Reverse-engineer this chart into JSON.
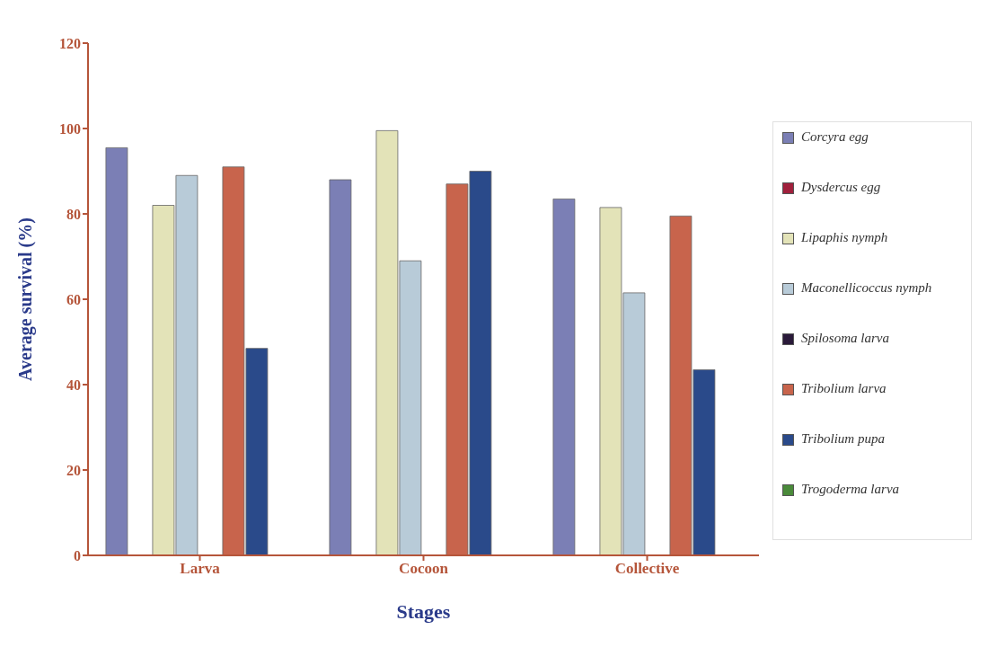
{
  "chart_data": {
    "type": "bar",
    "xlabel": "Stages",
    "ylabel": "Average survival (%)",
    "categories": [
      "Larva",
      "Cocoon",
      "Collective"
    ],
    "series": [
      {
        "name": "Corcyra egg",
        "color": "#7b7fb5",
        "values": [
          95.5,
          88,
          83.5
        ]
      },
      {
        "name": "Dysdercus egg",
        "color": "#a0203c",
        "values": [
          null,
          null,
          null
        ]
      },
      {
        "name": "Lipaphis nymph",
        "color": "#e3e3b8",
        "values": [
          82,
          99.5,
          81.5
        ]
      },
      {
        "name": "Maconellicoccus nymph",
        "color": "#b8cbd8",
        "values": [
          89,
          69,
          61.5
        ]
      },
      {
        "name": "Spilosoma larva",
        "color": "#2a1a3a",
        "values": [
          null,
          null,
          null
        ]
      },
      {
        "name": "Tribolium larva",
        "color": "#c8644c",
        "values": [
          91,
          87,
          79.5
        ]
      },
      {
        "name": "Tribolium pupa",
        "color": "#2a4a8a",
        "values": [
          48.5,
          90,
          43.5
        ]
      },
      {
        "name": "Trogoderma larva",
        "color": "#4a8a3a",
        "values": [
          null,
          null,
          null
        ]
      }
    ],
    "ylim": [
      0,
      120
    ],
    "yticks": [
      0,
      20,
      40,
      60,
      80,
      100,
      120
    ],
    "grid": false,
    "legend": "right"
  }
}
